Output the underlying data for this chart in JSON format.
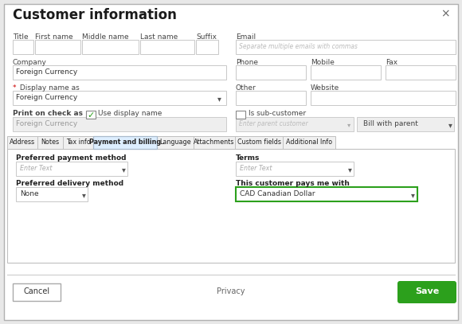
{
  "title": "Customer information",
  "close_x": "×",
  "bg_color": "#ffffff",
  "outer_bg": "#e8e8e8",
  "dialog_border": "#c0c0c0",
  "field_border": "#c8c8c8",
  "field_bg": "#ffffff",
  "field_bg_disabled": "#eeeeee",
  "tab_active": "Payment and billing",
  "tab_active_bg": "#ddeeff",
  "tab_active_border": "#aabbcc",
  "tabs": [
    "Address",
    "Notes",
    "Tax info",
    "Payment and billing",
    "Language",
    "Attachments",
    "Custom fields",
    "Additional Info"
  ],
  "company_label": "Company",
  "company_value": "Foreign Currency",
  "phone_label": "Phone",
  "mobile_label": "Mobile",
  "fax_label": "Fax",
  "display_label": "Display name as",
  "display_value": "Foreign Currency",
  "other_label": "Other",
  "website_label": "Website",
  "print_label": "Print on check as",
  "use_display": "Use display name",
  "print_value": "Foreign Currency",
  "is_sub_label": "Is sub-customer",
  "bill_label": "Bill with parent",
  "email_label": "Email",
  "email_placeholder": "Separate multiple emails with commas",
  "pref_pay_label": "Preferred payment method",
  "pref_pay_value": "Enter Text",
  "terms_label": "Terms",
  "terms_value": "Enter Text",
  "pref_del_label": "Preferred delivery method",
  "pref_del_value": "None",
  "pays_label": "This customer pays me with",
  "pays_value": "CAD Canadian Dollar",
  "cancel_label": "Cancel",
  "privacy_label": "Privacy",
  "save_label": "Save",
  "save_bg": "#2ca01c",
  "save_text": "#ffffff",
  "green_check": "#2ca01c",
  "red_star_color": "#cc0000",
  "highlight_border": "#2ca01c",
  "enter_parent": "Enter parent customer"
}
